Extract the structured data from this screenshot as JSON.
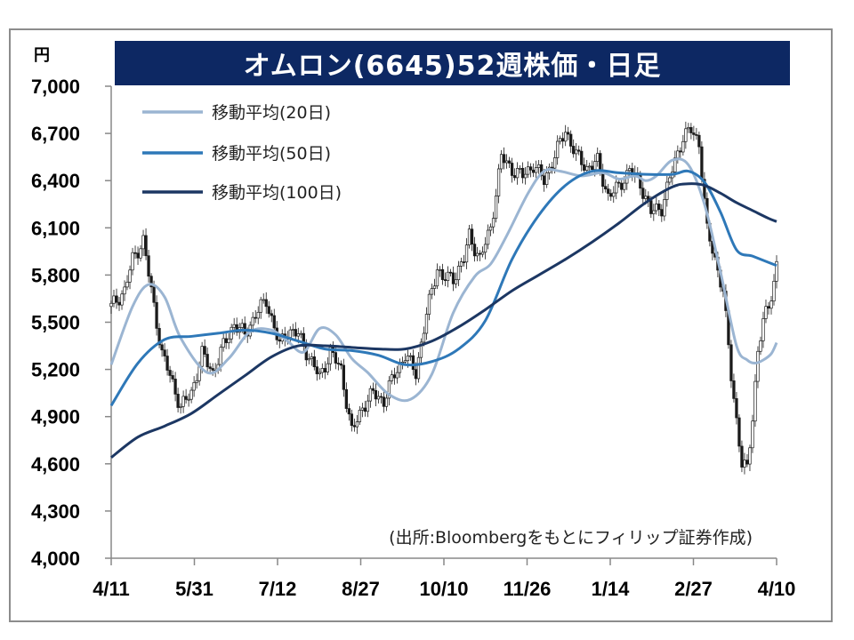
{
  "chart_data": {
    "type": "line",
    "title": "オムロン(6645)52週株価・日足",
    "unit_label": "円",
    "ylim": [
      4000,
      7000
    ],
    "yticks": [
      "7,000",
      "6,700",
      "6,400",
      "6,100",
      "5,800",
      "5,500",
      "5,200",
      "4,900",
      "4,600",
      "4,300",
      "4,000"
    ],
    "ytick_values": [
      7000,
      6700,
      6400,
      6100,
      5800,
      5500,
      5200,
      4900,
      4600,
      4300,
      4000
    ],
    "xticks": [
      "4/11",
      "5/31",
      "7/12",
      "8/27",
      "10/10",
      "11/26",
      "1/14",
      "2/27",
      "4/10"
    ],
    "x_count": 250,
    "source": "(出所:Bloombergをもとにフィリップ証券作成)",
    "series": [
      {
        "name": "移動平均(20日)",
        "color": "#9bb5d2",
        "x": [
          0,
          8,
          14,
          20,
          26,
          36,
          44,
          52,
          60,
          66,
          72,
          78,
          84,
          90,
          96,
          104,
          112,
          120,
          128,
          136,
          142,
          148,
          156,
          162,
          168,
          176,
          184,
          190,
          196,
          200,
          204,
          210,
          216,
          222,
          228,
          234,
          238,
          241,
          244,
          247,
          249
        ],
        "values": [
          5230,
          5600,
          5740,
          5660,
          5400,
          5180,
          5270,
          5440,
          5450,
          5380,
          5310,
          5460,
          5420,
          5270,
          5180,
          5040,
          5010,
          5170,
          5560,
          5790,
          5870,
          6050,
          6320,
          6460,
          6460,
          6430,
          6450,
          6410,
          6430,
          6400,
          6430,
          6530,
          6500,
          6250,
          5820,
          5350,
          5260,
          5240,
          5260,
          5300,
          5370
        ]
      },
      {
        "name": "移動平均(50日)",
        "color": "#2e78b8",
        "x": [
          0,
          10,
          20,
          30,
          40,
          50,
          60,
          70,
          80,
          90,
          100,
          110,
          120,
          130,
          140,
          150,
          160,
          170,
          180,
          190,
          200,
          210,
          216,
          222,
          228,
          234,
          240,
          246,
          249
        ],
        "values": [
          4970,
          5240,
          5390,
          5410,
          5430,
          5450,
          5430,
          5380,
          5330,
          5320,
          5290,
          5230,
          5250,
          5330,
          5510,
          5900,
          6180,
          6370,
          6460,
          6450,
          6440,
          6440,
          6460,
          6390,
          6200,
          5960,
          5920,
          5880,
          5860
        ]
      },
      {
        "name": "移動平均(100日)",
        "color": "#1c3763",
        "x": [
          0,
          10,
          20,
          30,
          40,
          50,
          60,
          70,
          80,
          90,
          100,
          110,
          120,
          130,
          140,
          150,
          160,
          170,
          180,
          190,
          200,
          210,
          216,
          222,
          228,
          234,
          240,
          246,
          249
        ],
        "values": [
          4640,
          4770,
          4840,
          4920,
          5040,
          5160,
          5280,
          5350,
          5350,
          5340,
          5330,
          5330,
          5380,
          5470,
          5580,
          5700,
          5800,
          5900,
          6010,
          6130,
          6260,
          6360,
          6380,
          6370,
          6320,
          6260,
          6210,
          6160,
          6140
        ]
      }
    ],
    "close_x": [
      0,
      5,
      8,
      12,
      15,
      19,
      22,
      26,
      30,
      34,
      38,
      42,
      46,
      50,
      54,
      58,
      63,
      66,
      70,
      74,
      78,
      82,
      86,
      90,
      94,
      98,
      102,
      106,
      110,
      114,
      118,
      122,
      124,
      128,
      132,
      134,
      138,
      142,
      146,
      150,
      154,
      158,
      162,
      166,
      170,
      174,
      178,
      182,
      186,
      190,
      194,
      198,
      202,
      206,
      210,
      214,
      217,
      220,
      223,
      226,
      229,
      232,
      234,
      236,
      238,
      240,
      242,
      244,
      246,
      248,
      249
    ],
    "close_values": [
      5600,
      5700,
      5900,
      6020,
      5700,
      5300,
      5160,
      4960,
      5050,
      5300,
      5180,
      5350,
      5490,
      5420,
      5550,
      5640,
      5350,
      5450,
      5420,
      5280,
      5150,
      5310,
      5200,
      4800,
      4960,
      5050,
      5000,
      5170,
      5290,
      5180,
      5550,
      5850,
      5780,
      5780,
      5900,
      6050,
      5900,
      6100,
      6550,
      6470,
      6430,
      6500,
      6400,
      6560,
      6720,
      6560,
      6480,
      6520,
      6300,
      6360,
      6470,
      6380,
      6200,
      6230,
      6470,
      6680,
      6720,
      6640,
      6080,
      5900,
      5700,
      5160,
      4880,
      4600,
      4560,
      4900,
      5320,
      5500,
      5600,
      5760,
      5870
    ]
  },
  "legend": {
    "items": [
      "移動平均(20日)",
      "移動平均(50日)",
      "移動平均(100日)"
    ],
    "placement": "top-left"
  },
  "colors": {
    "title_bg": "#0d2863",
    "candle": "#1a1a1a"
  }
}
